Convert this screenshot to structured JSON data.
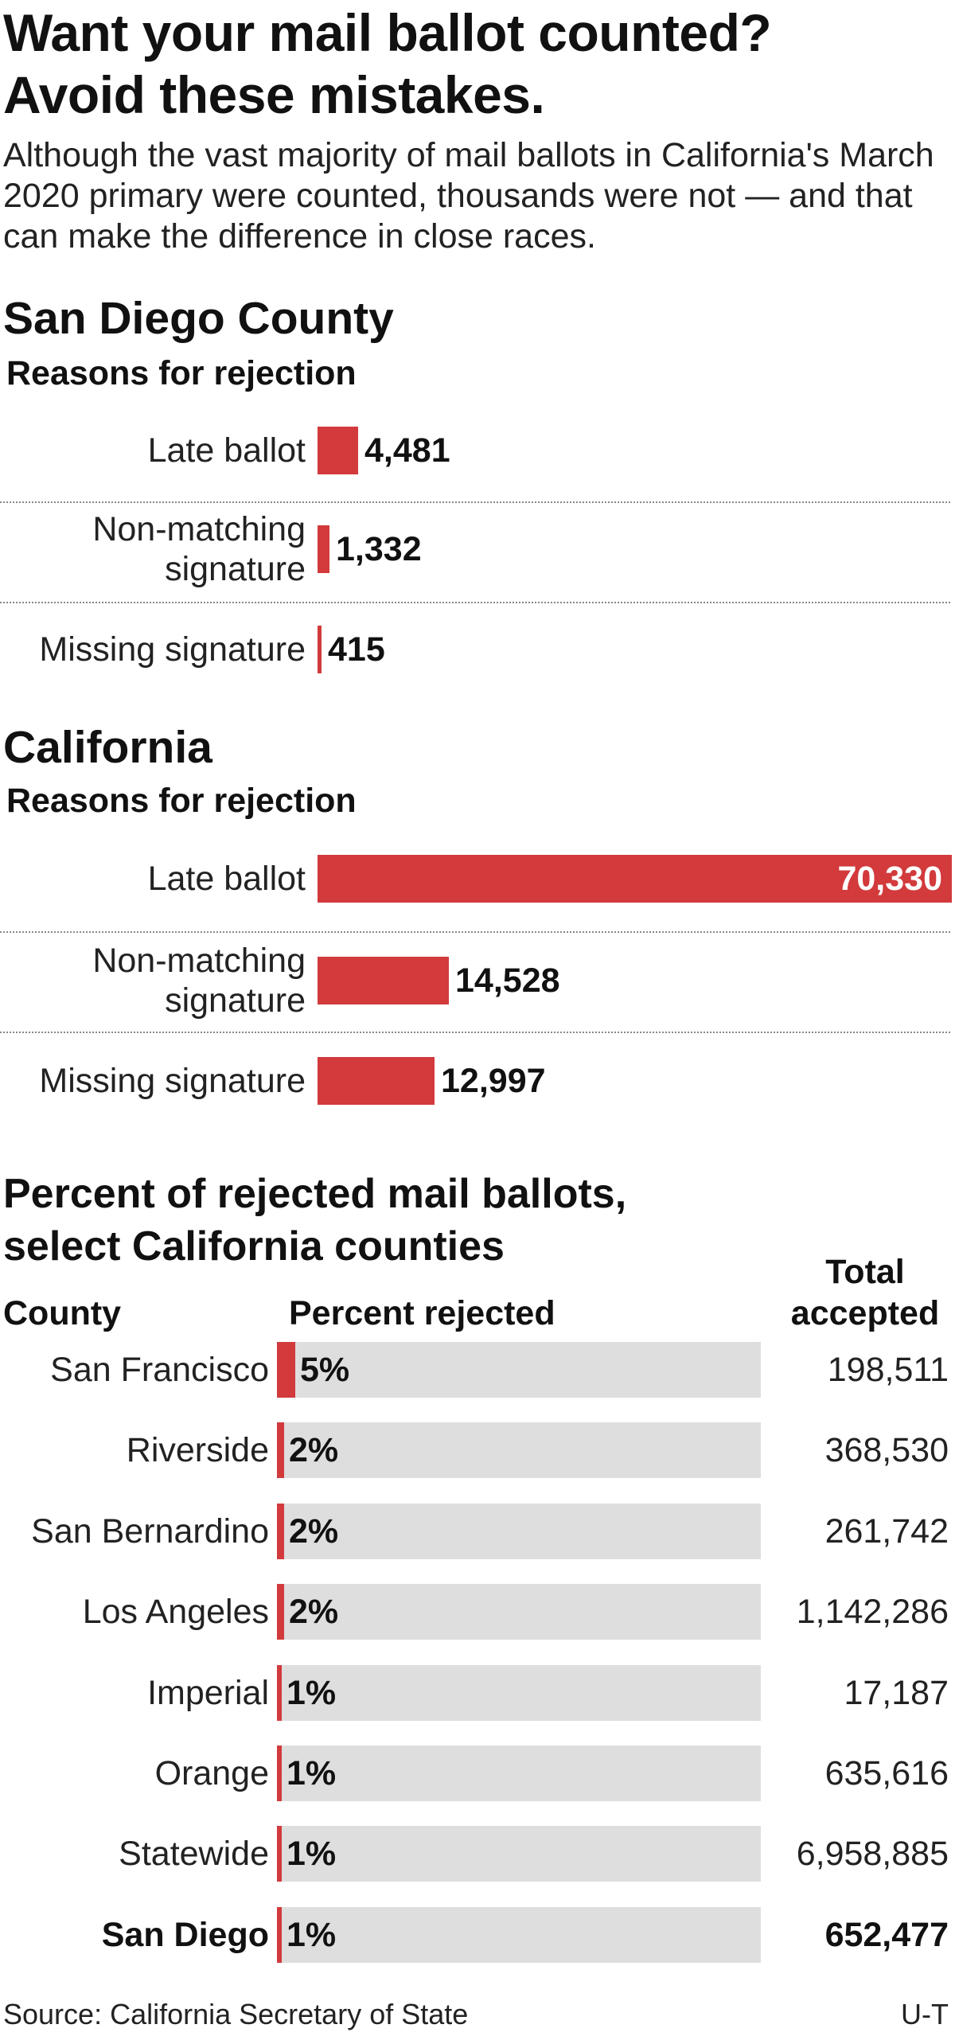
{
  "headline": {
    "line1": "Want your mail ballot counted?",
    "line2": "Avoid these mistakes."
  },
  "intro": "Although the vast majority of mail ballots in California's March 2020 primary were counted, thousands were not — and that can make the difference in close races.",
  "colors": {
    "bar": "#d23a3c",
    "track": "#dedede",
    "divider": "#888888"
  },
  "chart_data": [
    {
      "type": "bar",
      "orientation": "horizontal",
      "title": "San Diego County",
      "subtitle": "Reasons for rejection",
      "categories": [
        {
          "line1": "Late ballot",
          "line2": ""
        },
        {
          "line1": "Non-matching",
          "line2": "signature"
        },
        {
          "line1": "Missing signature",
          "line2": ""
        }
      ],
      "values": [
        4481,
        1332,
        415
      ],
      "labels": [
        "4,481",
        "1,332",
        "415"
      ],
      "xlim": [
        0,
        70330
      ]
    },
    {
      "type": "bar",
      "orientation": "horizontal",
      "title": "California",
      "subtitle": "Reasons for rejection",
      "categories": [
        {
          "line1": "Late ballot",
          "line2": ""
        },
        {
          "line1": "Non-matching",
          "line2": "signature"
        },
        {
          "line1": "Missing signature",
          "line2": ""
        }
      ],
      "values": [
        70330,
        14528,
        12997
      ],
      "labels": [
        "70,330",
        "14,528",
        "12,997"
      ],
      "xlim": [
        0,
        70330
      ]
    },
    {
      "type": "bar",
      "orientation": "horizontal",
      "title_line1": "Percent of rejected mail ballots,",
      "title_line2": "select California counties",
      "col_county": "County",
      "col_percent": "Percent rejected",
      "col_total_line1": "Total",
      "col_total_line2": "accepted",
      "xlim": [
        0,
        100
      ],
      "rows": [
        {
          "county": "San Francisco",
          "percent": 5,
          "label": "5%",
          "total": "198,511",
          "bold": false
        },
        {
          "county": "Riverside",
          "percent": 2,
          "label": "2%",
          "total": "368,530",
          "bold": false
        },
        {
          "county": "San Bernardino",
          "percent": 2,
          "label": "2%",
          "total": "261,742",
          "bold": false
        },
        {
          "county": "Los Angeles",
          "percent": 2,
          "label": "2%",
          "total": "1,142,286",
          "bold": false
        },
        {
          "county": "Imperial",
          "percent": 1,
          "label": "1%",
          "total": "17,187",
          "bold": false
        },
        {
          "county": "Orange",
          "percent": 1,
          "label": "1%",
          "total": "635,616",
          "bold": false
        },
        {
          "county": "Statewide",
          "percent": 1,
          "label": "1%",
          "total": "6,958,885",
          "bold": false
        },
        {
          "county": "San Diego",
          "percent": 1,
          "label": "1%",
          "total": "652,477",
          "bold": true
        }
      ]
    }
  ],
  "footer": {
    "source": "Source: California Secretary of State",
    "credit": "U-T"
  }
}
